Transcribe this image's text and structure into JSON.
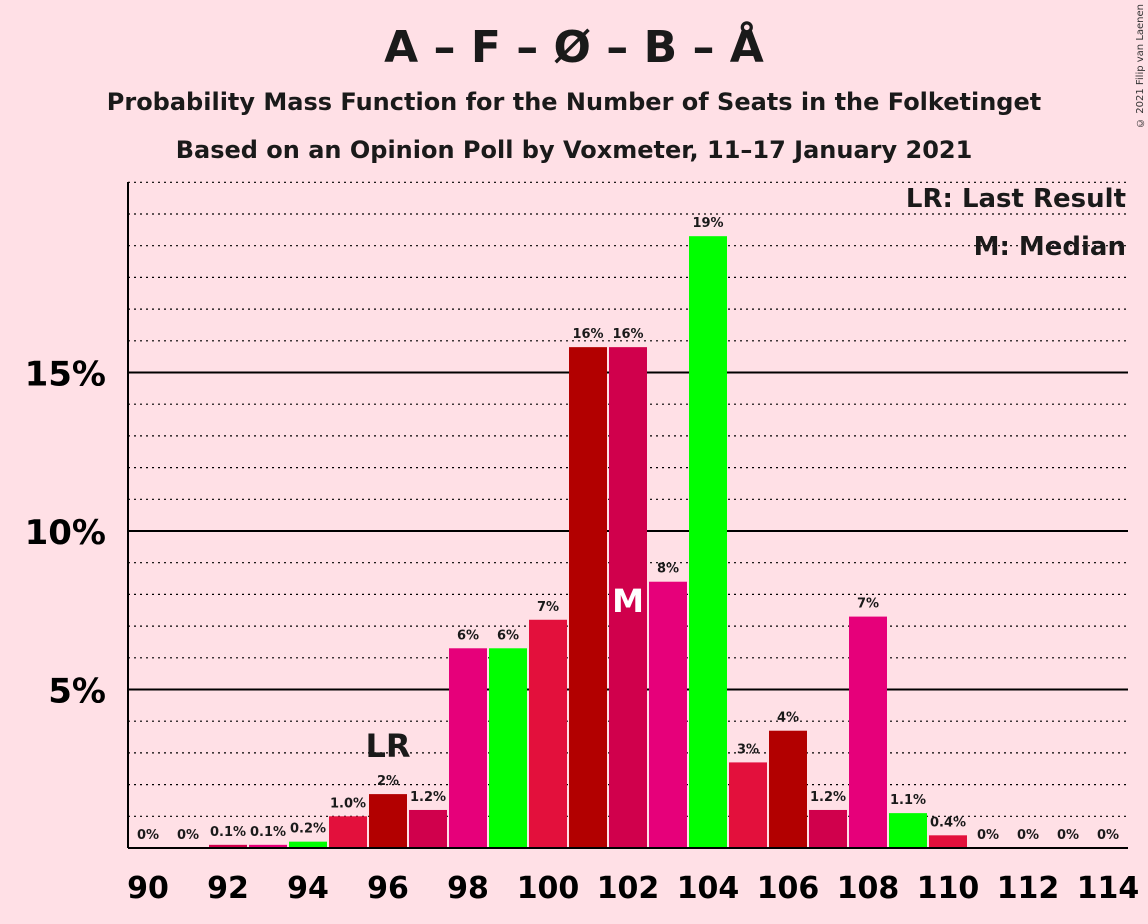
{
  "title": "A – F – Ø – B – Å",
  "subtitle1": "Probability Mass Function for the Number of Seats in the Folketinget",
  "subtitle2": "Based on an Opinion Poll by Voxmeter, 11–17 January 2021",
  "copyright": "© 2021 Filip van Laenen",
  "legend": {
    "last_result": "LR: Last Result",
    "median": "M: Median"
  },
  "markers": {
    "lr": "LR",
    "median": "M"
  },
  "colors": {
    "background": "#ffe0e6",
    "bar_cycle": [
      "#e3103c",
      "#b20000",
      "#d0004c",
      "#e6007a",
      "#00ff00"
    ]
  },
  "chart_data": {
    "type": "bar",
    "x": [
      90,
      91,
      92,
      93,
      94,
      95,
      96,
      97,
      98,
      99,
      100,
      101,
      102,
      103,
      104,
      105,
      106,
      107,
      108,
      109,
      110,
      111,
      112,
      113,
      114
    ],
    "values": [
      0,
      0,
      0.1,
      0.1,
      0.2,
      1.0,
      1.7,
      1.2,
      6.3,
      6.3,
      7.2,
      15.8,
      15.8,
      8.4,
      19.3,
      2.7,
      3.7,
      1.2,
      7.3,
      1.1,
      0.4,
      0,
      0,
      0,
      0
    ],
    "labels": [
      "0%",
      "0%",
      "0.1%",
      "0.1%",
      "0.2%",
      "1.0%",
      "2%",
      "1.2%",
      "6%",
      "6%",
      "7%",
      "16%",
      "16%",
      "8%",
      "19%",
      "3%",
      "4%",
      "1.2%",
      "7%",
      "1.1%",
      "0.4%",
      "0%",
      "0%",
      "0%",
      "0%"
    ],
    "colors": [
      "#e3103c",
      "#b20000",
      "#d0004c",
      "#e6007a",
      "#00ff00",
      "#e3103c",
      "#b20000",
      "#d0004c",
      "#e6007a",
      "#00ff00",
      "#e3103c",
      "#b20000",
      "#d0004c",
      "#e6007a",
      "#00ff00",
      "#e3103c",
      "#b20000",
      "#d0004c",
      "#e6007a",
      "#00ff00",
      "#e3103c",
      "#b20000",
      "#d0004c",
      "#e6007a",
      "#00ff00"
    ],
    "x_tick_labels": [
      "90",
      "92",
      "94",
      "96",
      "98",
      "100",
      "102",
      "104",
      "106",
      "108",
      "110",
      "112",
      "114"
    ],
    "y_ticks": [
      5,
      10,
      15
    ],
    "y_tick_labels": [
      "5%",
      "10%",
      "15%"
    ],
    "ylim": [
      0,
      21
    ],
    "minor_gridlines_step": 1,
    "last_result_x": 96,
    "median_x": 102,
    "legend_position": "top-right"
  }
}
